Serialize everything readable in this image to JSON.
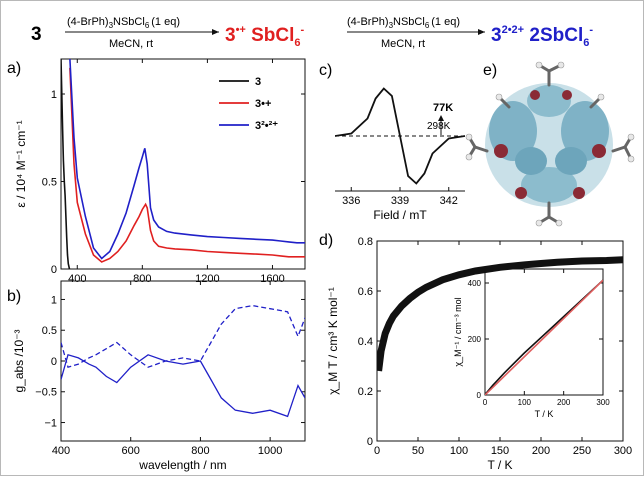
{
  "scheme": {
    "start": "3",
    "reagent1": "(4-BrPh)",
    "reagent1_sub": "3",
    "reagent1_tail": "NSbCl",
    "reagent1_sub2": "6",
    "reagent1_eq": "(1 eq)",
    "conditions1": "MeCN, rt",
    "product1_main": "3",
    "product1_sup": "•+",
    "product1_anion": " SbCl",
    "product1_anion_sub": "6",
    "product1_anion_sup": "-",
    "reagent2": "(4-BrPh)",
    "reagent2_sub": "3",
    "reagent2_tail": "NSbCl",
    "reagent2_sub2": "6",
    "reagent2_eq": "(1 eq)",
    "conditions2": "MeCN, rt",
    "product2_main": "3",
    "product2_sup": "2•2+",
    "product2_anion": " 2SbCl",
    "product2_anion_sub": "6",
    "product2_anion_sup": "-",
    "color_red": "#e02020",
    "color_blue": "#2020c8"
  },
  "panels": {
    "a": "a)",
    "b": "b)",
    "c": "c)",
    "d": "d)",
    "e": "e)"
  },
  "chart_data": [
    {
      "panel": "a",
      "type": "line",
      "ylabel": "ε / 10⁴ M⁻¹ cm⁻¹",
      "xlabel": "",
      "xlim": [
        300,
        1800
      ],
      "ylim": [
        0,
        1.2
      ],
      "x_ticks": [
        400,
        800,
        1200,
        1600
      ],
      "y_ticks": [
        0.0,
        0.5,
        1.0
      ],
      "legend_position": "top-right",
      "series": [
        {
          "name": "3",
          "color": "#111111",
          "x": [
            300,
            305,
            310,
            315,
            320,
            325,
            330,
            335,
            340,
            345,
            350,
            352,
            355
          ],
          "y": [
            1.2,
            1.0,
            0.8,
            0.62,
            0.5,
            0.42,
            0.3,
            0.18,
            0.08,
            0.03,
            0.01,
            0.0,
            0.0
          ]
        },
        {
          "name": "3•+",
          "color": "#e02020",
          "x": [
            355,
            380,
            400,
            450,
            500,
            550,
            600,
            650,
            700,
            750,
            780,
            800,
            820,
            830,
            850,
            870,
            900,
            950,
            1000,
            1100,
            1200,
            1300,
            1400,
            1500,
            1600,
            1650,
            1700,
            1750,
            1800
          ],
          "y": [
            1.15,
            0.6,
            0.38,
            0.2,
            0.08,
            0.04,
            0.06,
            0.1,
            0.16,
            0.25,
            0.3,
            0.34,
            0.37,
            0.35,
            0.22,
            0.16,
            0.13,
            0.12,
            0.115,
            0.11,
            0.1,
            0.095,
            0.09,
            0.085,
            0.08,
            0.075,
            0.07,
            0.07,
            0.07
          ]
        },
        {
          "name": "3²•²⁺",
          "color": "#2020c8",
          "x": [
            355,
            380,
            400,
            450,
            500,
            550,
            600,
            650,
            700,
            750,
            780,
            800,
            815,
            830,
            850,
            870,
            900,
            950,
            1000,
            1100,
            1200,
            1300,
            1400,
            1500,
            1600,
            1650,
            1700,
            1750,
            1800
          ],
          "y": [
            1.2,
            0.75,
            0.52,
            0.3,
            0.12,
            0.06,
            0.1,
            0.2,
            0.32,
            0.48,
            0.58,
            0.64,
            0.69,
            0.6,
            0.35,
            0.28,
            0.24,
            0.215,
            0.205,
            0.195,
            0.185,
            0.18,
            0.175,
            0.17,
            0.165,
            0.16,
            0.155,
            0.15,
            0.15
          ]
        }
      ]
    },
    {
      "panel": "b",
      "type": "line",
      "ylabel": "g_abs /10⁻³",
      "xlabel": "wavelength / nm",
      "xlim": [
        400,
        1100
      ],
      "ylim": [
        -1.3,
        1.3
      ],
      "x_ticks": [
        400,
        600,
        800,
        1000
      ],
      "y_ticks": [
        -1.0,
        -0.5,
        0.0,
        0.5,
        1.0
      ],
      "series": [
        {
          "name": "solid",
          "color": "#2020c8",
          "dash": false,
          "x": [
            400,
            420,
            450,
            480,
            500,
            530,
            560,
            600,
            650,
            700,
            750,
            800,
            830,
            860,
            900,
            950,
            1000,
            1050,
            1080,
            1100
          ],
          "y": [
            -0.3,
            0.1,
            0.05,
            -0.05,
            -0.1,
            -0.25,
            -0.35,
            -0.1,
            0.1,
            0.0,
            -0.05,
            0.0,
            -0.3,
            -0.6,
            -0.8,
            -0.85,
            -0.8,
            -0.9,
            -0.4,
            -0.6
          ]
        },
        {
          "name": "dashed",
          "color": "#2020c8",
          "dash": true,
          "x": [
            400,
            420,
            450,
            480,
            500,
            530,
            560,
            600,
            650,
            700,
            750,
            800,
            830,
            860,
            900,
            950,
            1000,
            1050,
            1080,
            1100
          ],
          "y": [
            0.3,
            -0.1,
            -0.05,
            0.05,
            0.1,
            0.2,
            0.3,
            0.1,
            -0.1,
            0.0,
            0.05,
            0.0,
            0.3,
            0.6,
            0.85,
            0.9,
            0.85,
            0.8,
            0.4,
            0.7
          ]
        }
      ]
    },
    {
      "panel": "c",
      "type": "line",
      "xlabel": "Field / mT",
      "xlim": [
        335,
        343
      ],
      "x_ticks": [
        336,
        339,
        342
      ],
      "annotations": [
        "77K",
        "298K"
      ],
      "series": [
        {
          "name": "EPR",
          "color": "#111111",
          "x": [
            335,
            336,
            337,
            337.5,
            338,
            338.5,
            339,
            339.5,
            340,
            340.5,
            341,
            342,
            343
          ],
          "y": [
            0.0,
            0.05,
            0.35,
            0.75,
            0.95,
            0.8,
            0.0,
            -0.8,
            -0.95,
            -0.75,
            -0.35,
            -0.05,
            0.0
          ]
        }
      ]
    },
    {
      "panel": "d",
      "type": "scatter",
      "ylabel": "χ_M T / cm³ K mol⁻¹",
      "xlabel": "T / K",
      "xlim": [
        0,
        300
      ],
      "ylim": [
        0.0,
        0.8
      ],
      "x_ticks": [
        0,
        50,
        100,
        150,
        200,
        250,
        300
      ],
      "y_ticks": [
        0.0,
        0.2,
        0.4,
        0.6,
        0.8
      ],
      "series": [
        {
          "name": "chiT",
          "color": "#111111",
          "x": [
            2,
            5,
            10,
            15,
            20,
            30,
            40,
            50,
            60,
            80,
            100,
            120,
            150,
            180,
            200,
            220,
            250,
            280,
            300
          ],
          "y": [
            0.28,
            0.36,
            0.43,
            0.47,
            0.5,
            0.54,
            0.57,
            0.595,
            0.615,
            0.645,
            0.665,
            0.68,
            0.695,
            0.705,
            0.71,
            0.715,
            0.72,
            0.722,
            0.725
          ]
        }
      ],
      "inset": {
        "ylabel": "χ_M⁻¹ / cm⁻³ mol",
        "xlabel": "T / K",
        "xlim": [
          0,
          300
        ],
        "ylim": [
          0,
          450
        ],
        "x_ticks": [
          0,
          100,
          200,
          300
        ],
        "y_ticks": [
          0,
          200,
          400
        ],
        "series": [
          {
            "name": "inverse",
            "color": "#111111",
            "x": [
              2,
              20,
              50,
              100,
              150,
              200,
              250,
              300
            ],
            "y": [
              5,
              35,
              80,
              150,
              215,
              280,
              345,
              410
            ]
          },
          {
            "name": "fit",
            "color": "#e06060",
            "x": [
              0,
              300
            ],
            "y": [
              0,
              410
            ]
          }
        ]
      }
    }
  ]
}
